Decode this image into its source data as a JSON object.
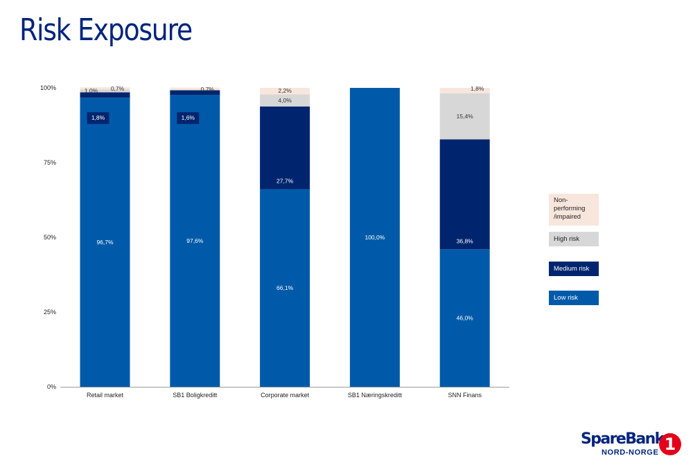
{
  "title": "Risk Exposure",
  "colors": {
    "low": "#005aa9",
    "medium": "#00256e",
    "high": "#d7d7d7",
    "nonperf": "#f8e6dc",
    "title": "#00247d"
  },
  "legend": [
    {
      "key": "nonperf",
      "label": "Non-performing /impaired"
    },
    {
      "key": "high",
      "label": "High risk"
    },
    {
      "key": "medium",
      "label": "Medium risk"
    },
    {
      "key": "low",
      "label": "Low risk"
    }
  ],
  "chart_data": {
    "type": "bar",
    "stacked": true,
    "categories": [
      "Retail market",
      "SB1 Boligkreditt",
      "Corporate market",
      "SB1 Næringskreditt",
      "SNN Finans"
    ],
    "ylim": [
      0,
      100
    ],
    "yticks": [
      "0%",
      "25%",
      "50%",
      "75%",
      "100%"
    ],
    "grid": false,
    "legend_position": "right",
    "series": [
      {
        "key": "low",
        "name": "Low risk",
        "values": [
          96.7,
          97.6,
          66.1,
          100.0,
          46.0
        ],
        "labels": [
          "96,7%",
          "97,6%",
          "66,1%",
          "100,0%",
          "46,0%"
        ]
      },
      {
        "key": "medium",
        "name": "Medium risk",
        "values": [
          1.8,
          1.6,
          27.7,
          0,
          36.8
        ],
        "labels": [
          "1,8%",
          "1,6%",
          "27,7%",
          "",
          "36,8%"
        ]
      },
      {
        "key": "high",
        "name": "High risk",
        "values": [
          1.0,
          0.2,
          4.0,
          0,
          15.4
        ],
        "labels": [
          "1,0%",
          "",
          "4,0%",
          "",
          "15,4%"
        ]
      },
      {
        "key": "nonperf",
        "name": "Non-performing /impaired",
        "values": [
          0.7,
          0.7,
          2.2,
          0,
          1.8
        ],
        "labels": [
          "0,7%",
          "0,7%",
          "2,2%",
          "",
          "1,8%"
        ]
      }
    ]
  },
  "logo": {
    "name": "SpareBank",
    "digit": "1",
    "sub": "NORD-NORGE"
  }
}
